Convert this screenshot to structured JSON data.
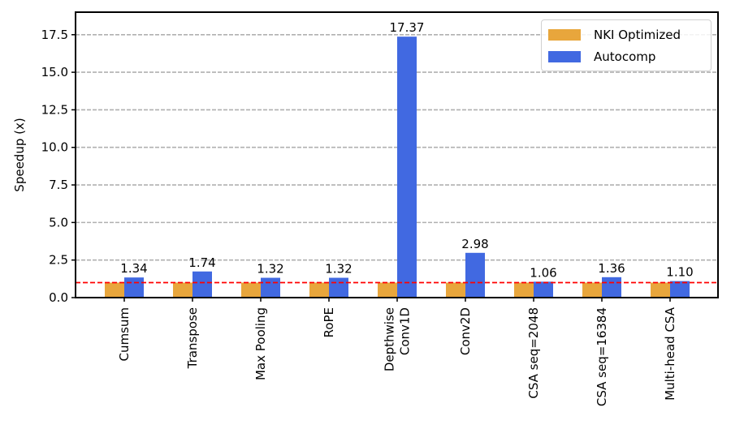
{
  "chart_data": {
    "type": "bar",
    "title": "",
    "xlabel": "",
    "ylabel": "Speedup (x)",
    "ylim": [
      0,
      19
    ],
    "yticks": [
      0.0,
      2.5,
      5.0,
      7.5,
      10.0,
      12.5,
      15.0,
      17.5
    ],
    "ytick_labels": [
      "0.0",
      "2.5",
      "5.0",
      "7.5",
      "10.0",
      "12.5",
      "15.0",
      "17.5"
    ],
    "grid": {
      "y": true,
      "style": "dashed",
      "color": "#b0b0b0"
    },
    "reference_line": {
      "y": 1.0,
      "color": "#ff0000",
      "style": "dashed"
    },
    "categories": [
      "Cumsum",
      "Transpose",
      "Max Pooling",
      "RoPE",
      "Depthwise\nConv1D",
      "Conv2D",
      "CSA seq=2048",
      "CSA seq=16384",
      "Multi-head CSA"
    ],
    "series": [
      {
        "name": "NKI Optimized",
        "color": "#e8a63c",
        "values": [
          1.0,
          1.0,
          1.0,
          1.0,
          1.0,
          1.0,
          1.0,
          1.0,
          1.0
        ]
      },
      {
        "name": "Autocomp",
        "color": "#4169e1",
        "values": [
          1.34,
          1.74,
          1.32,
          1.32,
          17.37,
          2.98,
          1.06,
          1.36,
          1.1
        ]
      }
    ],
    "data_labels": [
      "1.34",
      "1.74",
      "1.32",
      "1.32",
      "17.37",
      "2.98",
      "1.06",
      "1.36",
      "1.10"
    ],
    "legend_position": "upper right"
  }
}
